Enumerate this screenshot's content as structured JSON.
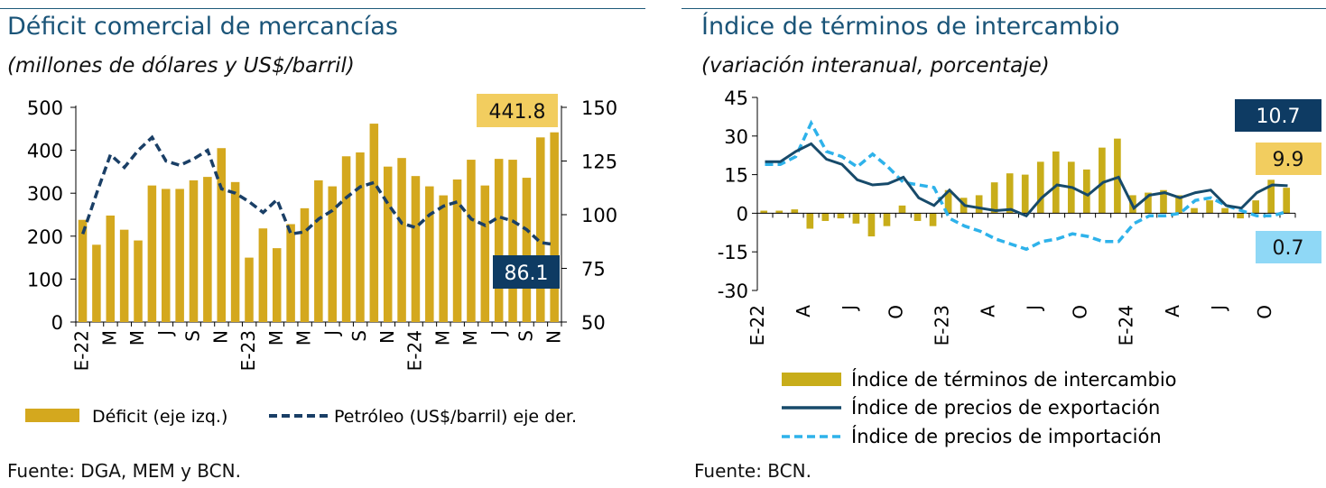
{
  "left": {
    "title": "Déficit comercial de mercancías",
    "subtitle": "(millones de dólares y US$/barril)",
    "source": "Fuente: DGA, MEM y BCN.",
    "chart_data": {
      "type": "bar",
      "x_labels": [
        "E-22",
        "",
        "M",
        "",
        "M",
        "",
        "J",
        "",
        "S",
        "",
        "N",
        "",
        "E-23",
        "",
        "M",
        "",
        "M",
        "",
        "J",
        "",
        "S",
        "",
        "N",
        "",
        "E-24",
        "",
        "M",
        "",
        "M",
        "",
        "J",
        "",
        "S",
        "",
        "N"
      ],
      "bar_series": {
        "name": "Déficit (eje izq.)",
        "color": "#d4a81e",
        "values": [
          238,
          180,
          248,
          215,
          190,
          318,
          310,
          310,
          330,
          338,
          405,
          326,
          150,
          218,
          172,
          228,
          265,
          330,
          316,
          386,
          395,
          462,
          362,
          382,
          340,
          316,
          295,
          332,
          378,
          318,
          380,
          378,
          336,
          430,
          441.8
        ]
      },
      "line_series": {
        "name": "Petróleo (US$/barril) eje der.",
        "color": "#1a3f66",
        "style": "dashed",
        "values": [
          91,
          110,
          128,
          122,
          130,
          136,
          125,
          123,
          126,
          130,
          112,
          110,
          106,
          101,
          107,
          91,
          92,
          98,
          102,
          108,
          113,
          115,
          105,
          96,
          94,
          100,
          104,
          106,
          98,
          95,
          99,
          97,
          93,
          87,
          86.1
        ]
      },
      "y_left": {
        "min": 0,
        "max": 500,
        "ticks": [
          0,
          100,
          200,
          300,
          400,
          500
        ]
      },
      "y_right": {
        "min": 50,
        "max": 150,
        "ticks": [
          50,
          75,
          100,
          125,
          150
        ]
      },
      "callouts": [
        {
          "text": "441.8",
          "bg": "#f2cd5f",
          "fg": "#111111"
        },
        {
          "text": "86.1",
          "bg": "#0e3b63",
          "fg": "#ffffff"
        }
      ],
      "legend": [
        {
          "label": "Déficit (eje izq.)",
          "kind": "bar"
        },
        {
          "label": "Petróleo (US$/barril) eje der.",
          "kind": "dashed-line"
        }
      ]
    }
  },
  "right": {
    "title": "Índice de términos de intercambio",
    "subtitle": "(variación interanual, porcentaje)",
    "source": "Fuente: BCN.",
    "chart_data": {
      "type": "bar",
      "x_labels": [
        "E-22",
        "",
        "",
        "A",
        "",
        "",
        "J",
        "",
        "",
        "O",
        "",
        "",
        "E-23",
        "",
        "",
        "A",
        "",
        "",
        "J",
        "",
        "",
        "O",
        "",
        "",
        "E-24",
        "",
        "",
        "A",
        "",
        "",
        "J",
        "",
        "",
        "O",
        "",
        ""
      ],
      "y": {
        "min": -30,
        "max": 45,
        "ticks": [
          -30,
          -15,
          0,
          15,
          30,
          45
        ]
      },
      "bar_series": {
        "name": "Índice de términos de intercambio",
        "color": "#c8ad1a",
        "values": [
          1,
          1,
          1.5,
          -6,
          -3,
          -2,
          -4,
          -9,
          -5,
          3,
          -3,
          -5,
          9,
          6,
          7,
          12,
          15.5,
          15,
          20,
          24,
          20,
          17,
          25.5,
          29,
          7,
          8,
          9,
          7,
          2,
          5,
          2,
          -2,
          5,
          13,
          9.9
        ]
      },
      "line_series": [
        {
          "name": "Índice de precios de exportación",
          "color": "#174a6a",
          "style": "solid",
          "values": [
            20,
            20,
            24,
            27,
            21,
            19,
            13,
            11,
            11.5,
            14,
            6,
            3,
            9,
            3,
            2,
            1,
            1.5,
            -1,
            6,
            11,
            10,
            7,
            12,
            14,
            2,
            7,
            8,
            6,
            8,
            9,
            3,
            2,
            8,
            11,
            10.7
          ]
        },
        {
          "name": "Índice de precios de importación",
          "color": "#2eb2ea",
          "style": "dashed",
          "values": [
            19,
            19,
            22,
            35,
            24,
            22,
            18,
            23,
            18,
            12,
            11,
            10,
            -2,
            -5,
            -7,
            -10,
            -12,
            -14,
            -11,
            -10,
            -8,
            -9,
            -11,
            -11,
            -4,
            -1,
            -1,
            0,
            5,
            6,
            3,
            1,
            -1,
            -1,
            0.7
          ]
        }
      ],
      "callouts": [
        {
          "text": "10.7",
          "bg": "#0e3b63",
          "fg": "#ffffff"
        },
        {
          "text": "9.9",
          "bg": "#f2cd5f",
          "fg": "#111111"
        },
        {
          "text": "0.7",
          "bg": "#8fd8f6",
          "fg": "#111111"
        }
      ],
      "legend": [
        {
          "label": "Índice de términos de intercambio",
          "kind": "bar"
        },
        {
          "label": "Índice de precios de exportación",
          "kind": "solid-line"
        },
        {
          "label": "Índice de precios de importación",
          "kind": "dashed-line"
        }
      ]
    }
  }
}
